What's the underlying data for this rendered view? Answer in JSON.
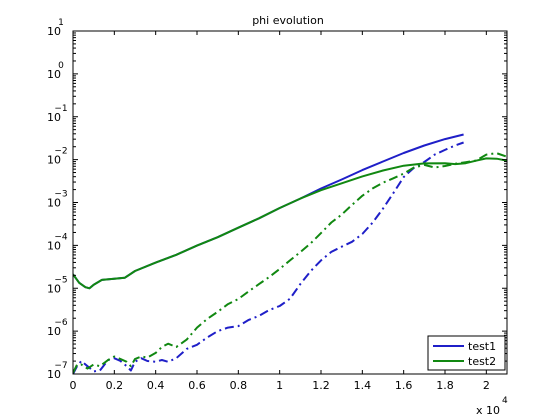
{
  "chart_data": {
    "type": "line",
    "title": "phi evolution",
    "xlabel": "",
    "ylabel": "",
    "x_multiplier": "x 10",
    "x_multiplier_exp": "4",
    "xlim": [
      0,
      21000
    ],
    "ylim": [
      1e-07,
      10
    ],
    "y_scale": "log",
    "grid": false,
    "legend_position": "bottom-right",
    "x_ticks": [
      {
        "value": 0,
        "label": "0"
      },
      {
        "value": 2000,
        "label": "0.2"
      },
      {
        "value": 4000,
        "label": "0.4"
      },
      {
        "value": 6000,
        "label": "0.6"
      },
      {
        "value": 8000,
        "label": "0.8"
      },
      {
        "value": 10000,
        "label": "1"
      },
      {
        "value": 12000,
        "label": "1.2"
      },
      {
        "value": 14000,
        "label": "1.4"
      },
      {
        "value": 16000,
        "label": "1.6"
      },
      {
        "value": 18000,
        "label": "1.8"
      },
      {
        "value": 20000,
        "label": "2"
      }
    ],
    "y_ticks": [
      {
        "exp": 1,
        "base": "10",
        "sup": "1"
      },
      {
        "exp": 0,
        "base": "10",
        "sup": "0"
      },
      {
        "exp": -1,
        "base": "10",
        "sup": "−1"
      },
      {
        "exp": -2,
        "base": "10",
        "sup": "−2"
      },
      {
        "exp": -3,
        "base": "10",
        "sup": "−3"
      },
      {
        "exp": -4,
        "base": "10",
        "sup": "−4"
      },
      {
        "exp": -5,
        "base": "10",
        "sup": "−5"
      },
      {
        "exp": -6,
        "base": "10",
        "sup": "−6"
      },
      {
        "exp": -7,
        "base": "10",
        "sup": "−7"
      }
    ],
    "series": [
      {
        "name": "test1",
        "color": "#1f1fc8",
        "style": "solid",
        "x": [
          0,
          300,
          600,
          800,
          1000,
          1400,
          2000,
          2500,
          3000,
          4000,
          5000,
          6000,
          7000,
          8000,
          9000,
          10000,
          11000,
          12000,
          13000,
          14000,
          15000,
          16000,
          17000,
          18000,
          18900
        ],
        "y": [
          2.11e-05,
          1.34e-05,
          1.06e-05,
          9.95e-06,
          1.21e-05,
          1.57e-05,
          1.66e-05,
          1.75e-05,
          2.53e-05,
          3.96e-05,
          6.02e-05,
          9.86e-05,
          0.000155,
          0.000259,
          0.000429,
          0.000745,
          0.00123,
          0.00212,
          0.00344,
          0.0057,
          0.00902,
          0.0143,
          0.0213,
          0.0301,
          0.0385
        ]
      },
      {
        "name": "",
        "color": "#1f1fc8",
        "style": "dashdot",
        "x": [
          0,
          200,
          400,
          700,
          1000,
          1300,
          1700,
          2000,
          2300,
          2600,
          2800,
          3000,
          3300,
          3600,
          4000,
          4300,
          4600,
          5000,
          5500,
          6000,
          6500,
          7000,
          7500,
          8000,
          8500,
          9000,
          9500,
          10000,
          10500,
          11000,
          11500,
          12000,
          12500,
          13000,
          13500,
          14000,
          14500,
          15000,
          15500,
          16000,
          16500,
          17000,
          17500,
          18000,
          18500,
          18900
        ],
        "y": [
          1e-07,
          1.52e-07,
          2.01e-07,
          1.52e-07,
          1.15e-07,
          1.21e-07,
          2.12e-07,
          2.33e-07,
          2.01e-07,
          1.52e-07,
          1.21e-07,
          1.93e-07,
          2.33e-07,
          2.01e-07,
          1.93e-07,
          2.12e-07,
          1.93e-07,
          2.33e-07,
          3.86e-07,
          4.81e-07,
          7.12e-07,
          9.99e-07,
          1.21e-06,
          1.31e-06,
          1.83e-06,
          2.27e-06,
          3.11e-06,
          3.86e-06,
          5.72e-06,
          1.25e-05,
          2.51e-05,
          4.46e-05,
          7.06e-05,
          9.3e-05,
          0.000121,
          0.000184,
          0.000341,
          0.00072,
          0.00165,
          0.00394,
          0.00644,
          0.00879,
          0.0131,
          0.0169,
          0.0215,
          0.0251
        ]
      },
      {
        "name": "test2",
        "color": "#118811",
        "style": "solid",
        "x": [
          0,
          300,
          600,
          800,
          1000,
          1400,
          2000,
          2500,
          3000,
          4000,
          5000,
          6000,
          7000,
          8000,
          9000,
          10000,
          11000,
          12000,
          13000,
          14000,
          15000,
          16000,
          17000,
          18000,
          18500,
          19000,
          19500,
          20000,
          20500,
          21000
        ],
        "y": [
          2.11e-05,
          1.34e-05,
          1.06e-05,
          9.95e-06,
          1.21e-05,
          1.57e-05,
          1.66e-05,
          1.75e-05,
          2.53e-05,
          3.96e-05,
          6.02e-05,
          9.86e-05,
          0.000155,
          0.000259,
          0.000429,
          0.000745,
          0.00123,
          0.00194,
          0.00281,
          0.00407,
          0.00559,
          0.00721,
          0.00818,
          0.00825,
          0.00787,
          0.00825,
          0.00944,
          0.0107,
          0.0105,
          0.00944
        ]
      },
      {
        "name": "",
        "color": "#118811",
        "style": "dashdot",
        "x": [
          0,
          200,
          400,
          700,
          1000,
          1300,
          1700,
          2000,
          2300,
          2600,
          2800,
          3000,
          3300,
          3600,
          4000,
          4300,
          4600,
          5000,
          5500,
          6000,
          6500,
          7000,
          7500,
          8000,
          8500,
          9000,
          9500,
          10000,
          10500,
          11000,
          11500,
          12000,
          12500,
          13000,
          13500,
          14000,
          14500,
          15000,
          15500,
          16000,
          16500,
          17000,
          17500,
          18000,
          18500,
          19000,
          19500,
          20000,
          20500,
          21000
        ],
        "y": [
          1.06e-07,
          1.67e-07,
          1.67e-07,
          1.34e-07,
          1.67e-07,
          1.52e-07,
          2.12e-07,
          2.56e-07,
          2.24e-07,
          1.93e-07,
          1.52e-07,
          2.24e-07,
          2.56e-07,
          2.41e-07,
          3.11e-07,
          4.27e-07,
          5.09e-07,
          4.27e-07,
          6.36e-07,
          1.21e-06,
          1.93e-06,
          2.83e-06,
          4.27e-06,
          5.6e-06,
          8.48e-06,
          1.25e-05,
          1.83e-05,
          2.83e-05,
          4.46e-05,
          6.95e-05,
          0.000112,
          0.000193,
          0.000341,
          0.000523,
          0.000879,
          0.00143,
          0.00213,
          0.0029,
          0.00367,
          0.00473,
          0.00655,
          0.00754,
          0.00655,
          0.0071,
          0.00804,
          0.00871,
          0.0095,
          0.0131,
          0.0141,
          0.0117
        ]
      }
    ]
  }
}
